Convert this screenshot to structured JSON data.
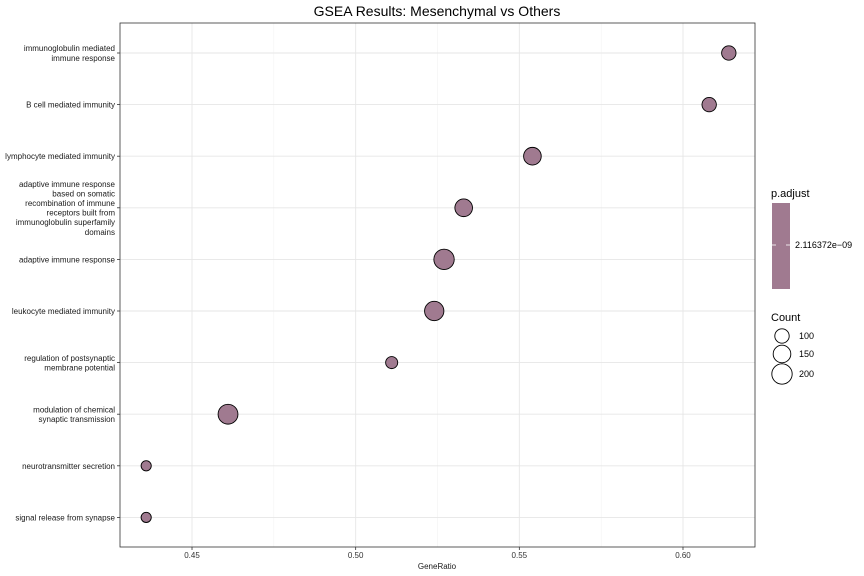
{
  "chart_data": {
    "type": "scatter",
    "title": "GSEA Results: Mesenchymal vs Others",
    "xlabel": "GeneRatio",
    "ylabel": "",
    "xlim": [
      0.428,
      0.622
    ],
    "xticks": [
      0.45,
      0.5,
      0.55,
      0.6
    ],
    "xtick_labels": [
      "0.45",
      "0.50",
      "0.55",
      "0.60"
    ],
    "grid": true,
    "point_color": "#a07a90",
    "points": [
      {
        "term": [
          "immunoglobulin mediated",
          "immune response"
        ],
        "x": 0.614,
        "count": 100
      },
      {
        "term": [
          "B cell mediated immunity"
        ],
        "x": 0.608,
        "count": 100
      },
      {
        "term": [
          "lymphocyte mediated immunity"
        ],
        "x": 0.554,
        "count": 150
      },
      {
        "term": [
          "adaptive immune response",
          "based on somatic",
          "recombination of immune",
          "receptors built from",
          "immunoglobulin superfamily",
          "domains"
        ],
        "x": 0.533,
        "count": 150
      },
      {
        "term": [
          "adaptive immune response"
        ],
        "x": 0.527,
        "count": 200
      },
      {
        "term": [
          "leukocyte mediated immunity"
        ],
        "x": 0.524,
        "count": 180
      },
      {
        "term": [
          "regulation of postsynaptic",
          "membrane potential"
        ],
        "x": 0.511,
        "count": 70
      },
      {
        "term": [
          "modulation of chemical",
          "synaptic transmission"
        ],
        "x": 0.461,
        "count": 190
      },
      {
        "term": [
          "neurotransmitter secretion"
        ],
        "x": 0.436,
        "count": 50
      },
      {
        "term": [
          "signal release from synapse"
        ],
        "x": 0.436,
        "count": 50
      }
    ],
    "color_legend": {
      "title": "p.adjust",
      "label": "2.116372e−09",
      "color": "#a07a90",
      "position": "right"
    },
    "size_legend": {
      "title": "Count",
      "entries": [
        {
          "label": "100",
          "count": 100
        },
        {
          "label": "150",
          "count": 150
        },
        {
          "label": "200",
          "count": 200
        }
      ],
      "position": "right"
    }
  }
}
